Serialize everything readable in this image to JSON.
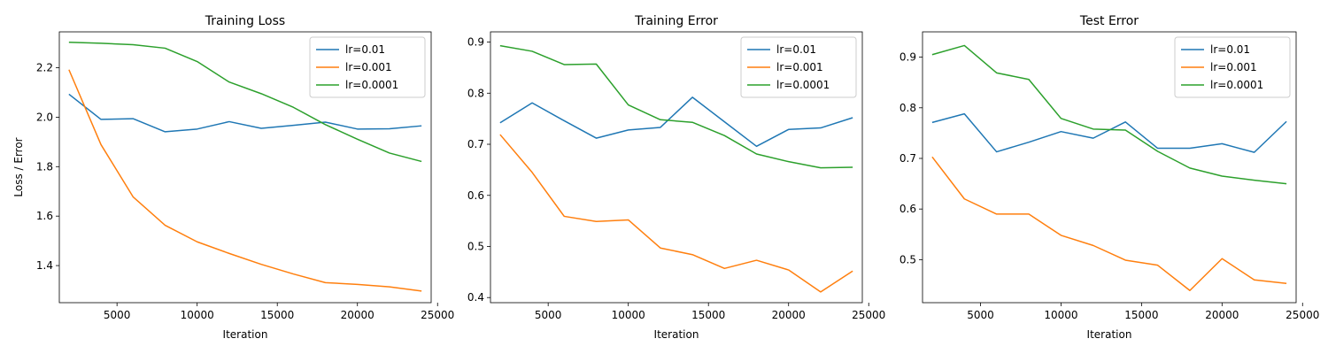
{
  "colors": {
    "lr_0_01": "#1f77b4",
    "lr_0_001": "#ff7f0e",
    "lr_0_0001": "#2ca02c"
  },
  "chart_data": [
    {
      "type": "line",
      "title": "Training Loss",
      "xlabel": "Iteration",
      "ylabel": "Loss / Error",
      "xlim": [
        1400,
        24600
      ],
      "ylim": [
        1.25,
        2.345
      ],
      "xticks": [
        5000,
        10000,
        15000,
        20000,
        25000
      ],
      "xtick_labels": [
        "5000",
        "10000",
        "15000",
        "20000",
        "25000"
      ],
      "yticks": [
        1.4,
        1.6,
        1.8,
        2.0,
        2.2
      ],
      "ytick_labels": [
        "1.4",
        "1.6",
        "1.8",
        "2.0",
        "2.2"
      ],
      "grid": false,
      "legend": "top-right",
      "x": [
        2000,
        4000,
        6000,
        8000,
        10000,
        12000,
        14000,
        16000,
        18000,
        20000,
        22000,
        24000
      ],
      "series": [
        {
          "name": "lr=0.01",
          "color": "#1f77b4",
          "values": [
            2.093,
            1.991,
            1.994,
            1.941,
            1.952,
            1.982,
            1.955,
            1.967,
            1.98,
            1.952,
            1.953,
            1.965
          ]
        },
        {
          "name": "lr=0.001",
          "color": "#ff7f0e",
          "values": [
            2.192,
            1.889,
            1.678,
            1.563,
            1.496,
            1.449,
            1.405,
            1.366,
            1.331,
            1.324,
            1.314,
            1.297
          ]
        },
        {
          "name": "lr=0.0001",
          "color": "#2ca02c",
          "values": [
            2.303,
            2.299,
            2.293,
            2.279,
            2.225,
            2.142,
            2.095,
            2.04,
            1.97,
            1.911,
            1.855,
            1.821
          ]
        }
      ]
    },
    {
      "type": "line",
      "title": "Training Error",
      "xlabel": "Iteration",
      "ylabel": "",
      "xlim": [
        1400,
        24600
      ],
      "ylim": [
        0.39,
        0.92
      ],
      "xticks": [
        5000,
        10000,
        15000,
        20000,
        25000
      ],
      "xtick_labels": [
        "5000",
        "10000",
        "15000",
        "20000",
        "25000"
      ],
      "yticks": [
        0.4,
        0.5,
        0.6,
        0.7,
        0.8,
        0.9
      ],
      "ytick_labels": [
        "0.4",
        "0.5",
        "0.6",
        "0.7",
        "0.8",
        "0.9"
      ],
      "grid": false,
      "legend": "top-right",
      "x": [
        2000,
        4000,
        6000,
        8000,
        10000,
        12000,
        14000,
        16000,
        18000,
        20000,
        22000,
        24000
      ],
      "series": [
        {
          "name": "lr=0.01",
          "color": "#1f77b4",
          "values": [
            0.742,
            0.781,
            0.746,
            0.712,
            0.728,
            0.733,
            0.792,
            0.744,
            0.696,
            0.729,
            0.732,
            0.752
          ]
        },
        {
          "name": "lr=0.001",
          "color": "#ff7f0e",
          "values": [
            0.719,
            0.645,
            0.559,
            0.549,
            0.552,
            0.497,
            0.484,
            0.457,
            0.473,
            0.454,
            0.411,
            0.452
          ]
        },
        {
          "name": "lr=0.0001",
          "color": "#2ca02c",
          "values": [
            0.893,
            0.882,
            0.856,
            0.857,
            0.777,
            0.748,
            0.743,
            0.717,
            0.681,
            0.666,
            0.654,
            0.655
          ]
        }
      ]
    },
    {
      "type": "line",
      "title": "Test Error",
      "xlabel": "Iteration",
      "ylabel": "",
      "xlim": [
        1400,
        24600
      ],
      "ylim": [
        0.415,
        0.95
      ],
      "xticks": [
        5000,
        10000,
        15000,
        20000,
        25000
      ],
      "xtick_labels": [
        "5000",
        "10000",
        "15000",
        "20000",
        "25000"
      ],
      "yticks": [
        0.5,
        0.6,
        0.7,
        0.8,
        0.9
      ],
      "ytick_labels": [
        "0.5",
        "0.6",
        "0.7",
        "0.8",
        "0.9"
      ],
      "grid": false,
      "legend": "top-right",
      "x": [
        2000,
        4000,
        6000,
        8000,
        10000,
        12000,
        14000,
        16000,
        18000,
        20000,
        22000,
        24000
      ],
      "series": [
        {
          "name": "lr=0.01",
          "color": "#1f77b4",
          "values": [
            0.771,
            0.788,
            0.713,
            0.732,
            0.753,
            0.74,
            0.772,
            0.72,
            0.72,
            0.729,
            0.712,
            0.773
          ]
        },
        {
          "name": "lr=0.001",
          "color": "#ff7f0e",
          "values": [
            0.703,
            0.62,
            0.59,
            0.59,
            0.548,
            0.528,
            0.499,
            0.489,
            0.439,
            0.502,
            0.46,
            0.453
          ]
        },
        {
          "name": "lr=0.0001",
          "color": "#2ca02c",
          "values": [
            0.905,
            0.923,
            0.869,
            0.856,
            0.779,
            0.758,
            0.756,
            0.714,
            0.681,
            0.665,
            0.657,
            0.65
          ]
        }
      ]
    }
  ]
}
